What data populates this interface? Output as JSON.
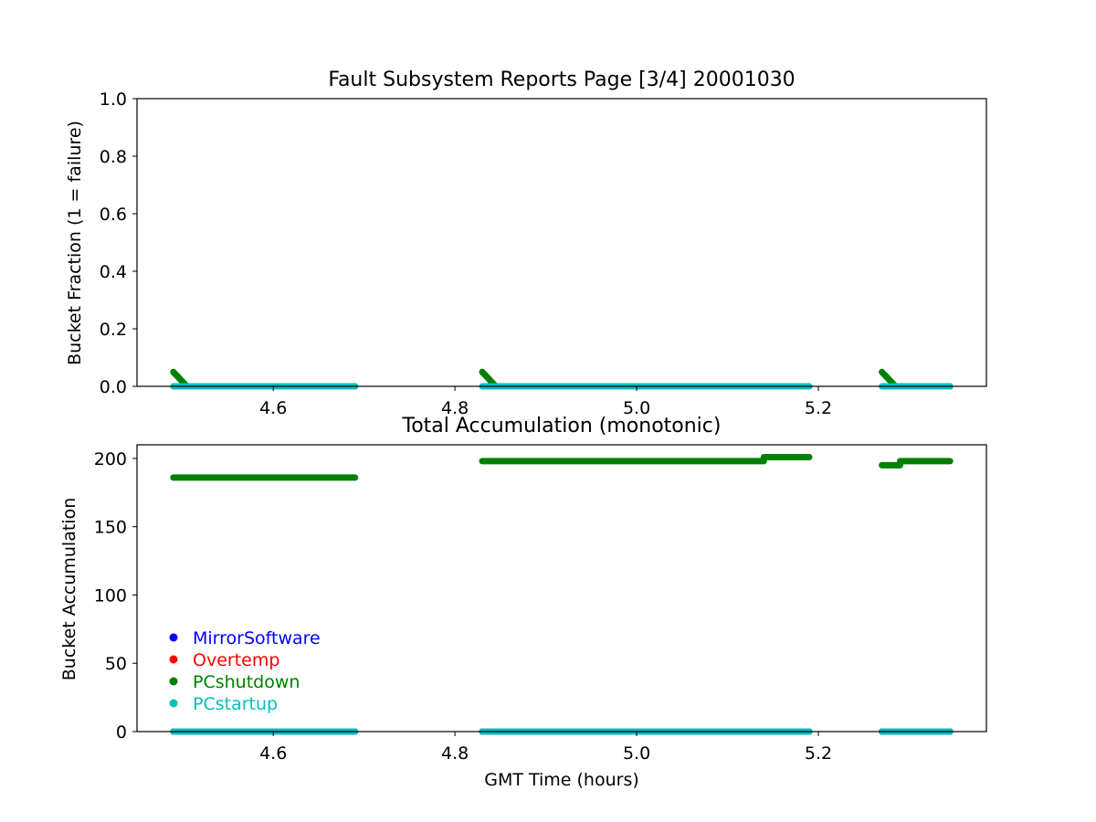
{
  "chart_data": [
    {
      "type": "scatter",
      "title": "Fault Subsystem Reports Page [3/4] 20001030",
      "xlabel": "",
      "ylabel": "Bucket Fraction (1 = failure)",
      "xlim": [
        4.45,
        5.385
      ],
      "ylim": [
        0.0,
        1.0
      ],
      "xticks": [
        4.6,
        4.8,
        5.0,
        5.2
      ],
      "xtick_labels": [
        "4.6",
        "4.8",
        "5.0",
        "5.2"
      ],
      "yticks": [
        0.0,
        0.2,
        0.4,
        0.6,
        0.8,
        1.0
      ],
      "ytick_labels": [
        "0.0",
        "0.2",
        "0.4",
        "0.6",
        "0.8",
        "1.0"
      ],
      "grid": false,
      "series": [
        {
          "name": "PCshutdown",
          "color": "#008000",
          "segments": [
            [
              [
                4.49,
                0.05
              ],
              [
                4.505,
                0.0
              ],
              [
                4.69,
                0.0
              ]
            ],
            [
              [
                4.83,
                0.05
              ],
              [
                4.845,
                0.0
              ],
              [
                5.19,
                0.0
              ]
            ],
            [
              [
                5.27,
                0.05
              ],
              [
                5.285,
                0.0
              ],
              [
                5.345,
                0.0
              ]
            ]
          ]
        },
        {
          "name": "PCstartup",
          "color": "#00BFBF",
          "segments": [
            [
              [
                4.49,
                0.0
              ],
              [
                4.69,
                0.0
              ]
            ],
            [
              [
                4.83,
                0.0
              ],
              [
                5.19,
                0.0
              ]
            ],
            [
              [
                5.27,
                0.0
              ],
              [
                5.345,
                0.0
              ]
            ]
          ]
        }
      ]
    },
    {
      "type": "scatter",
      "title": "Total Accumulation (monotonic)",
      "xlabel": "GMT Time (hours)",
      "ylabel": "Bucket Accumulation",
      "xlim": [
        4.45,
        5.385
      ],
      "ylim": [
        0,
        210
      ],
      "xticks": [
        4.6,
        4.8,
        5.0,
        5.2
      ],
      "xtick_labels": [
        "4.6",
        "4.8",
        "5.0",
        "5.2"
      ],
      "yticks": [
        0,
        50,
        100,
        150,
        200
      ],
      "ytick_labels": [
        "0",
        "50",
        "100",
        "150",
        "200"
      ],
      "grid": false,
      "legend": {
        "placement": "lower-left",
        "entries": [
          {
            "name": "MirrorSoftware",
            "color": "#0000FF"
          },
          {
            "name": "Overtemp",
            "color": "#FF0000"
          },
          {
            "name": "PCshutdown",
            "color": "#008000"
          },
          {
            "name": "PCstartup",
            "color": "#00BFBF"
          }
        ]
      },
      "series": [
        {
          "name": "MirrorSoftware",
          "color": "#0000FF",
          "segments": [
            [
              [
                4.49,
                0
              ],
              [
                4.69,
                0
              ]
            ],
            [
              [
                4.83,
                0
              ],
              [
                5.19,
                0
              ]
            ],
            [
              [
                5.27,
                0
              ],
              [
                5.345,
                0
              ]
            ]
          ]
        },
        {
          "name": "Overtemp",
          "color": "#FF0000",
          "segments": [
            [
              [
                4.49,
                0
              ],
              [
                4.69,
                0
              ]
            ],
            [
              [
                4.83,
                0
              ],
              [
                5.19,
                0
              ]
            ],
            [
              [
                5.27,
                0
              ],
              [
                5.345,
                0
              ]
            ]
          ]
        },
        {
          "name": "PCshutdown",
          "color": "#008000",
          "segments": [
            [
              [
                4.49,
                186
              ],
              [
                4.69,
                186
              ]
            ],
            [
              [
                4.83,
                198
              ],
              [
                5.14,
                198
              ]
            ],
            [
              [
                5.14,
                201
              ],
              [
                5.19,
                201
              ]
            ],
            [
              [
                5.27,
                195
              ],
              [
                5.29,
                195
              ]
            ],
            [
              [
                5.29,
                198
              ],
              [
                5.345,
                198
              ]
            ]
          ]
        },
        {
          "name": "PCstartup",
          "color": "#00BFBF",
          "segments": [
            [
              [
                4.49,
                0
              ],
              [
                4.69,
                0
              ]
            ],
            [
              [
                4.83,
                0
              ],
              [
                5.19,
                0
              ]
            ],
            [
              [
                5.27,
                0
              ],
              [
                5.345,
                0
              ]
            ]
          ]
        }
      ]
    }
  ]
}
